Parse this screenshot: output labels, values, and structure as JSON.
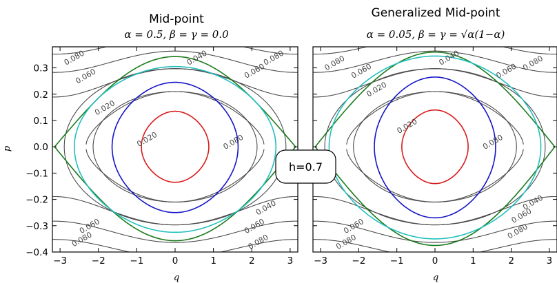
{
  "chart_data": [
    {
      "type": "line",
      "title": "Mid-point",
      "subtitle": "α = 0.5,    β = γ = 0.0",
      "xlabel": "q",
      "ylabel": "p",
      "xlim": [
        -3.2,
        3.2
      ],
      "ylim": [
        -0.4,
        0.38
      ],
      "xticks": [
        "−3",
        "−2",
        "−1",
        "0",
        "1",
        "2",
        "3"
      ],
      "xtick_values": [
        -3,
        -2,
        -1,
        0,
        1,
        2,
        3
      ],
      "yticks": [
        "0.3",
        "0.2",
        "0.1",
        "0.0",
        "−0.1",
        "−0.2",
        "−0.3",
        "−0.4"
      ],
      "ytick_values": [
        0.3,
        0.2,
        0.1,
        0.0,
        -0.1,
        -0.2,
        -0.3,
        -0.4
      ],
      "contour_levels": [
        0.02,
        0.04,
        0.06,
        0.08
      ],
      "contour_labels": [
        {
          "text": "0.080",
          "q": -2.6,
          "p": 0.33
        },
        {
          "text": "0.060",
          "q": -2.3,
          "p": 0.26
        },
        {
          "text": "0.040",
          "q": 0.6,
          "p": 0.33
        },
        {
          "text": "0.060",
          "q": 2.1,
          "p": 0.28
        },
        {
          "text": "0.080",
          "q": 2.6,
          "p": 0.33
        },
        {
          "text": "0.020",
          "q": -1.8,
          "p": 0.14
        },
        {
          "text": "0.020",
          "q": -0.7,
          "p": 0.02
        },
        {
          "text": "0.080",
          "q": 1.55,
          "p": 0.01
        },
        {
          "text": "0.060",
          "q": -2.2,
          "p": -0.31
        },
        {
          "text": "0.080",
          "q": -2.4,
          "p": -0.36
        },
        {
          "text": "0.040",
          "q": 2.4,
          "p": -0.24
        },
        {
          "text": "0.060",
          "q": 2.1,
          "p": -0.31
        },
        {
          "text": "0.080",
          "q": 2.2,
          "p": -0.37
        }
      ],
      "series": [
        {
          "color": "#1a7a1a",
          "kind": "separatrix",
          "amplitude": 3.14159,
          "p_max": 0.343,
          "p_min": -0.357
        },
        {
          "color": "#22bfbf",
          "kind": "orbit",
          "a": 2.48,
          "b_top": 0.305,
          "b_bot": -0.325
        },
        {
          "color": "#1414c8",
          "kind": "orbit",
          "a": 1.55,
          "b_top": 0.245,
          "b_bot": -0.25
        },
        {
          "color": "#d81a1a",
          "kind": "orbit",
          "a": 0.83,
          "b_top": 0.135,
          "b_bot": -0.135
        }
      ]
    },
    {
      "type": "line",
      "title": "Generalized Mid-point",
      "subtitle": "α = 0.05,    β = γ = √α(1−α)",
      "xlabel": "q",
      "xlim": [
        -3.2,
        3.2
      ],
      "ylim": [
        -0.4,
        0.38
      ],
      "xticks": [
        "−3",
        "−2",
        "−1",
        "0",
        "1",
        "2",
        "3"
      ],
      "xtick_values": [
        -3,
        -2,
        -1,
        0,
        1,
        2,
        3
      ],
      "contour_levels": [
        0.02,
        0.04,
        0.06,
        0.08
      ],
      "contour_labels": [
        {
          "text": "0.080",
          "q": -2.6,
          "p": 0.31
        },
        {
          "text": "0.060",
          "q": -1.9,
          "p": 0.28
        },
        {
          "text": "0.040",
          "q": 0.4,
          "p": 0.33
        },
        {
          "text": "0.060",
          "q": 1.9,
          "p": 0.28
        },
        {
          "text": "0.080",
          "q": 2.6,
          "p": 0.31
        },
        {
          "text": "0.020",
          "q": -1.5,
          "p": 0.21
        },
        {
          "text": "0.020",
          "q": -0.7,
          "p": 0.07
        },
        {
          "text": "0.080",
          "q": 1.55,
          "p": 0.01
        },
        {
          "text": "0.060",
          "q": -2.1,
          "p": -0.31
        },
        {
          "text": "0.080",
          "q": -2.3,
          "p": -0.37
        },
        {
          "text": "0.040",
          "q": 2.6,
          "p": -0.22
        },
        {
          "text": "0.060",
          "q": 2.3,
          "p": -0.27
        },
        {
          "text": "0.080",
          "q": 2.2,
          "p": -0.33
        }
      ],
      "series": [
        {
          "color": "#1a7a1a",
          "kind": "separatrix",
          "amplitude": 3.14159,
          "p_max": 0.36,
          "p_min": -0.375
        },
        {
          "color": "#22bfbf",
          "kind": "orbit",
          "a": 2.62,
          "b_top": 0.345,
          "b_bot": -0.35
        },
        {
          "color": "#1414c8",
          "kind": "orbit",
          "a": 1.5,
          "b_top": 0.265,
          "b_bot": -0.27
        },
        {
          "color": "#d81a1a",
          "kind": "orbit",
          "a": 0.82,
          "b_top": 0.14,
          "b_bot": -0.14
        }
      ]
    }
  ],
  "annotation": {
    "text": "h=0.7"
  },
  "colors": {
    "contour": "#4a4a4a",
    "axes": "#000000"
  }
}
